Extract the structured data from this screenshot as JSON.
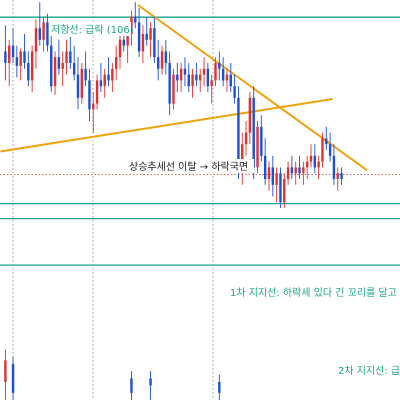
{
  "chart_data": {
    "type": "candlestick",
    "colors": {
      "up": "#e03131",
      "down": "#1c4fd8",
      "wick": "#444444",
      "support_band": "#1aa68a",
      "trendline": "#f0a20c",
      "price_line": "#c0392b",
      "gridline": "#8a8a8a"
    },
    "y_range": [
      0,
      100
    ],
    "annotations": {
      "resistance": "저항선: 급락 (106)",
      "uptrend_break": "상승추세선 이탈 → 하락국면",
      "support1": "1차 지지선: 하락세 있다 긴 꼬리를 달고",
      "support2": "2차 지지선: 급"
    },
    "levels": {
      "resistance": 95.8,
      "support1": 31.5,
      "support2": 10.3,
      "current_price": 41.5
    },
    "trendlines": {
      "uptrend": [
        [
          -1,
          49.5
        ],
        [
          86,
          67.6
        ]
      ],
      "downtrend": [
        [
          35,
          100
        ],
        [
          95,
          43
        ]
      ]
    },
    "candles": [
      {
        "o": 84,
        "h": 93,
        "l": 74,
        "c": 80
      },
      {
        "o": 80,
        "h": 88,
        "l": 72,
        "c": 86
      },
      {
        "o": 86,
        "h": 92,
        "l": 80,
        "c": 82
      },
      {
        "o": 82,
        "h": 86,
        "l": 75,
        "c": 79
      },
      {
        "o": 79,
        "h": 85,
        "l": 74,
        "c": 84
      },
      {
        "o": 84,
        "h": 90,
        "l": 78,
        "c": 80
      },
      {
        "o": 80,
        "h": 84,
        "l": 72,
        "c": 74
      },
      {
        "o": 74,
        "h": 86,
        "l": 70,
        "c": 84
      },
      {
        "o": 84,
        "h": 95,
        "l": 78,
        "c": 92
      },
      {
        "o": 92,
        "h": 101,
        "l": 86,
        "c": 88
      },
      {
        "o": 88,
        "h": 96,
        "l": 84,
        "c": 94
      },
      {
        "o": 94,
        "h": 97,
        "l": 84,
        "c": 86
      },
      {
        "o": 86,
        "h": 90,
        "l": 70,
        "c": 72
      },
      {
        "o": 72,
        "h": 84,
        "l": 69,
        "c": 82
      },
      {
        "o": 82,
        "h": 88,
        "l": 76,
        "c": 78
      },
      {
        "o": 78,
        "h": 84,
        "l": 72,
        "c": 80
      },
      {
        "o": 80,
        "h": 88,
        "l": 76,
        "c": 84
      },
      {
        "o": 84,
        "h": 89,
        "l": 78,
        "c": 80
      },
      {
        "o": 80,
        "h": 86,
        "l": 74,
        "c": 76
      },
      {
        "o": 76,
        "h": 82,
        "l": 64,
        "c": 68
      },
      {
        "o": 68,
        "h": 80,
        "l": 66,
        "c": 78
      },
      {
        "o": 78,
        "h": 84,
        "l": 72,
        "c": 74
      },
      {
        "o": 74,
        "h": 78,
        "l": 60,
        "c": 64
      },
      {
        "o": 64,
        "h": 70,
        "l": 56,
        "c": 66
      },
      {
        "o": 66,
        "h": 76,
        "l": 64,
        "c": 74
      },
      {
        "o": 74,
        "h": 80,
        "l": 70,
        "c": 72
      },
      {
        "o": 72,
        "h": 78,
        "l": 68,
        "c": 76
      },
      {
        "o": 76,
        "h": 82,
        "l": 72,
        "c": 74
      },
      {
        "o": 74,
        "h": 80,
        "l": 70,
        "c": 78
      },
      {
        "o": 78,
        "h": 86,
        "l": 74,
        "c": 82
      },
      {
        "o": 82,
        "h": 92,
        "l": 78,
        "c": 88
      },
      {
        "o": 88,
        "h": 94,
        "l": 84,
        "c": 86
      },
      {
        "o": 86,
        "h": 92,
        "l": 80,
        "c": 90
      },
      {
        "o": 90,
        "h": 98,
        "l": 86,
        "c": 96
      },
      {
        "o": 96,
        "h": 101,
        "l": 92,
        "c": 94
      },
      {
        "o": 94,
        "h": 99,
        "l": 82,
        "c": 84
      },
      {
        "o": 84,
        "h": 93,
        "l": 80,
        "c": 90
      },
      {
        "o": 90,
        "h": 96,
        "l": 86,
        "c": 88
      },
      {
        "o": 88,
        "h": 94,
        "l": 82,
        "c": 92
      },
      {
        "o": 92,
        "h": 96,
        "l": 80,
        "c": 82
      },
      {
        "o": 82,
        "h": 88,
        "l": 74,
        "c": 78
      },
      {
        "o": 78,
        "h": 86,
        "l": 76,
        "c": 84
      },
      {
        "o": 84,
        "h": 88,
        "l": 76,
        "c": 80
      },
      {
        "o": 80,
        "h": 84,
        "l": 62,
        "c": 66
      },
      {
        "o": 66,
        "h": 78,
        "l": 64,
        "c": 76
      },
      {
        "o": 76,
        "h": 80,
        "l": 70,
        "c": 74
      },
      {
        "o": 74,
        "h": 80,
        "l": 70,
        "c": 78
      },
      {
        "o": 78,
        "h": 82,
        "l": 72,
        "c": 76
      },
      {
        "o": 76,
        "h": 80,
        "l": 70,
        "c": 72
      },
      {
        "o": 72,
        "h": 78,
        "l": 68,
        "c": 76
      },
      {
        "o": 76,
        "h": 80,
        "l": 72,
        "c": 74
      },
      {
        "o": 74,
        "h": 78,
        "l": 70,
        "c": 76
      },
      {
        "o": 76,
        "h": 82,
        "l": 72,
        "c": 78
      },
      {
        "o": 78,
        "h": 80,
        "l": 70,
        "c": 72
      },
      {
        "o": 72,
        "h": 76,
        "l": 66,
        "c": 74
      },
      {
        "o": 74,
        "h": 82,
        "l": 72,
        "c": 80
      },
      {
        "o": 80,
        "h": 84,
        "l": 74,
        "c": 78
      },
      {
        "o": 78,
        "h": 82,
        "l": 72,
        "c": 74
      },
      {
        "o": 74,
        "h": 78,
        "l": 70,
        "c": 76
      },
      {
        "o": 76,
        "h": 80,
        "l": 70,
        "c": 72
      },
      {
        "o": 72,
        "h": 76,
        "l": 66,
        "c": 68
      },
      {
        "o": 68,
        "h": 72,
        "l": 40,
        "c": 46
      },
      {
        "o": 46,
        "h": 56,
        "l": 38,
        "c": 52
      },
      {
        "o": 52,
        "h": 60,
        "l": 48,
        "c": 56
      },
      {
        "o": 56,
        "h": 70,
        "l": 52,
        "c": 68
      },
      {
        "o": 68,
        "h": 72,
        "l": 40,
        "c": 44
      },
      {
        "o": 44,
        "h": 60,
        "l": 42,
        "c": 58
      },
      {
        "o": 58,
        "h": 62,
        "l": 46,
        "c": 48
      },
      {
        "o": 48,
        "h": 54,
        "l": 38,
        "c": 40
      },
      {
        "o": 40,
        "h": 46,
        "l": 36,
        "c": 44
      },
      {
        "o": 44,
        "h": 48,
        "l": 34,
        "c": 38
      },
      {
        "o": 38,
        "h": 44,
        "l": 32,
        "c": 42
      },
      {
        "o": 42,
        "h": 44,
        "l": 30,
        "c": 32
      },
      {
        "o": 32,
        "h": 42,
        "l": 30,
        "c": 40
      },
      {
        "o": 40,
        "h": 46,
        "l": 38,
        "c": 44
      },
      {
        "o": 44,
        "h": 48,
        "l": 40,
        "c": 42
      },
      {
        "o": 42,
        "h": 46,
        "l": 38,
        "c": 44
      },
      {
        "o": 44,
        "h": 48,
        "l": 40,
        "c": 42
      },
      {
        "o": 42,
        "h": 46,
        "l": 38,
        "c": 44
      },
      {
        "o": 44,
        "h": 48,
        "l": 40,
        "c": 46
      },
      {
        "o": 46,
        "h": 52,
        "l": 44,
        "c": 48
      },
      {
        "o": 48,
        "h": 52,
        "l": 42,
        "c": 44
      },
      {
        "o": 44,
        "h": 48,
        "l": 40,
        "c": 46
      },
      {
        "o": 46,
        "h": 56,
        "l": 44,
        "c": 54
      },
      {
        "o": 54,
        "h": 58,
        "l": 50,
        "c": 52
      },
      {
        "o": 52,
        "h": 56,
        "l": 46,
        "c": 48
      },
      {
        "o": 48,
        "h": 52,
        "l": 38,
        "c": 40
      },
      {
        "o": 40,
        "h": 44,
        "l": 36,
        "c": 42
      },
      {
        "o": 42,
        "h": 44,
        "l": 38,
        "c": 40
      }
    ],
    "lower_candles": [
      {
        "i": 0,
        "o": 5,
        "h": 14,
        "l": 0,
        "c": 11
      },
      {
        "i": 2,
        "o": 10,
        "h": 12,
        "l": 0,
        "c": 2
      },
      {
        "i": 33,
        "o": 6,
        "h": 8,
        "l": 0,
        "c": 2
      },
      {
        "i": 38,
        "o": 6,
        "h": 8,
        "l": 0,
        "c": 4
      },
      {
        "i": 56,
        "o": 5,
        "h": 7,
        "l": 0,
        "c": 2
      }
    ]
  }
}
